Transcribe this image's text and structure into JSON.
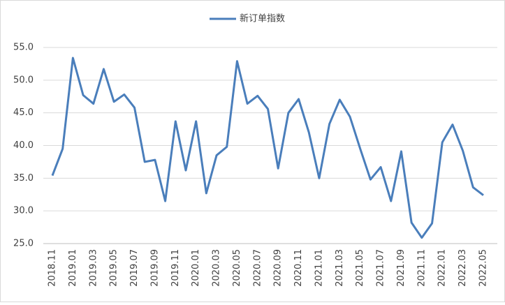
{
  "chart_data": {
    "type": "line",
    "categories": [
      "2018.11",
      null,
      "2019.01",
      null,
      "2019.03",
      null,
      "2019.05",
      null,
      "2019.07",
      null,
      "2019.09",
      null,
      "2019.11",
      null,
      "2020.01",
      null,
      "2020.03",
      null,
      "2020.05",
      null,
      "2020.07",
      null,
      "2020.09",
      null,
      "2020.11",
      null,
      "2021.01",
      null,
      "2021.03",
      null,
      "2021.05",
      null,
      "2021.07",
      null,
      "2021.09",
      null,
      "2021.11",
      null,
      "2022.01",
      null,
      "2022.03",
      null,
      "2022.05"
    ],
    "series": [
      {
        "name": "新订单指数",
        "color": "#4a7ebb",
        "values": [
          35.4,
          39.5,
          53.4,
          47.7,
          46.4,
          51.7,
          46.7,
          47.8,
          45.8,
          37.5,
          37.8,
          31.5,
          43.7,
          36.2,
          43.7,
          32.7,
          38.5,
          39.8,
          52.9,
          46.4,
          47.6,
          45.6,
          36.5,
          45.0,
          47.1,
          42.0,
          35.0,
          43.3,
          47.0,
          44.4,
          39.5,
          34.8,
          36.7,
          31.5,
          39.1,
          28.2,
          25.9,
          28.1,
          40.5,
          43.2,
          39.2,
          33.6,
          32.4
        ]
      }
    ],
    "ylim": [
      25,
      55
    ],
    "yticks": [
      {
        "value": 25,
        "label": "25.0"
      },
      {
        "value": 30,
        "label": "30.0"
      },
      {
        "value": 35,
        "label": "35.0"
      },
      {
        "value": 40,
        "label": "40.0"
      },
      {
        "value": 45,
        "label": "45.0"
      },
      {
        "value": 50,
        "label": "50.0"
      },
      {
        "value": 55,
        "label": "55.0"
      }
    ],
    "grid": true,
    "legend": "top"
  }
}
